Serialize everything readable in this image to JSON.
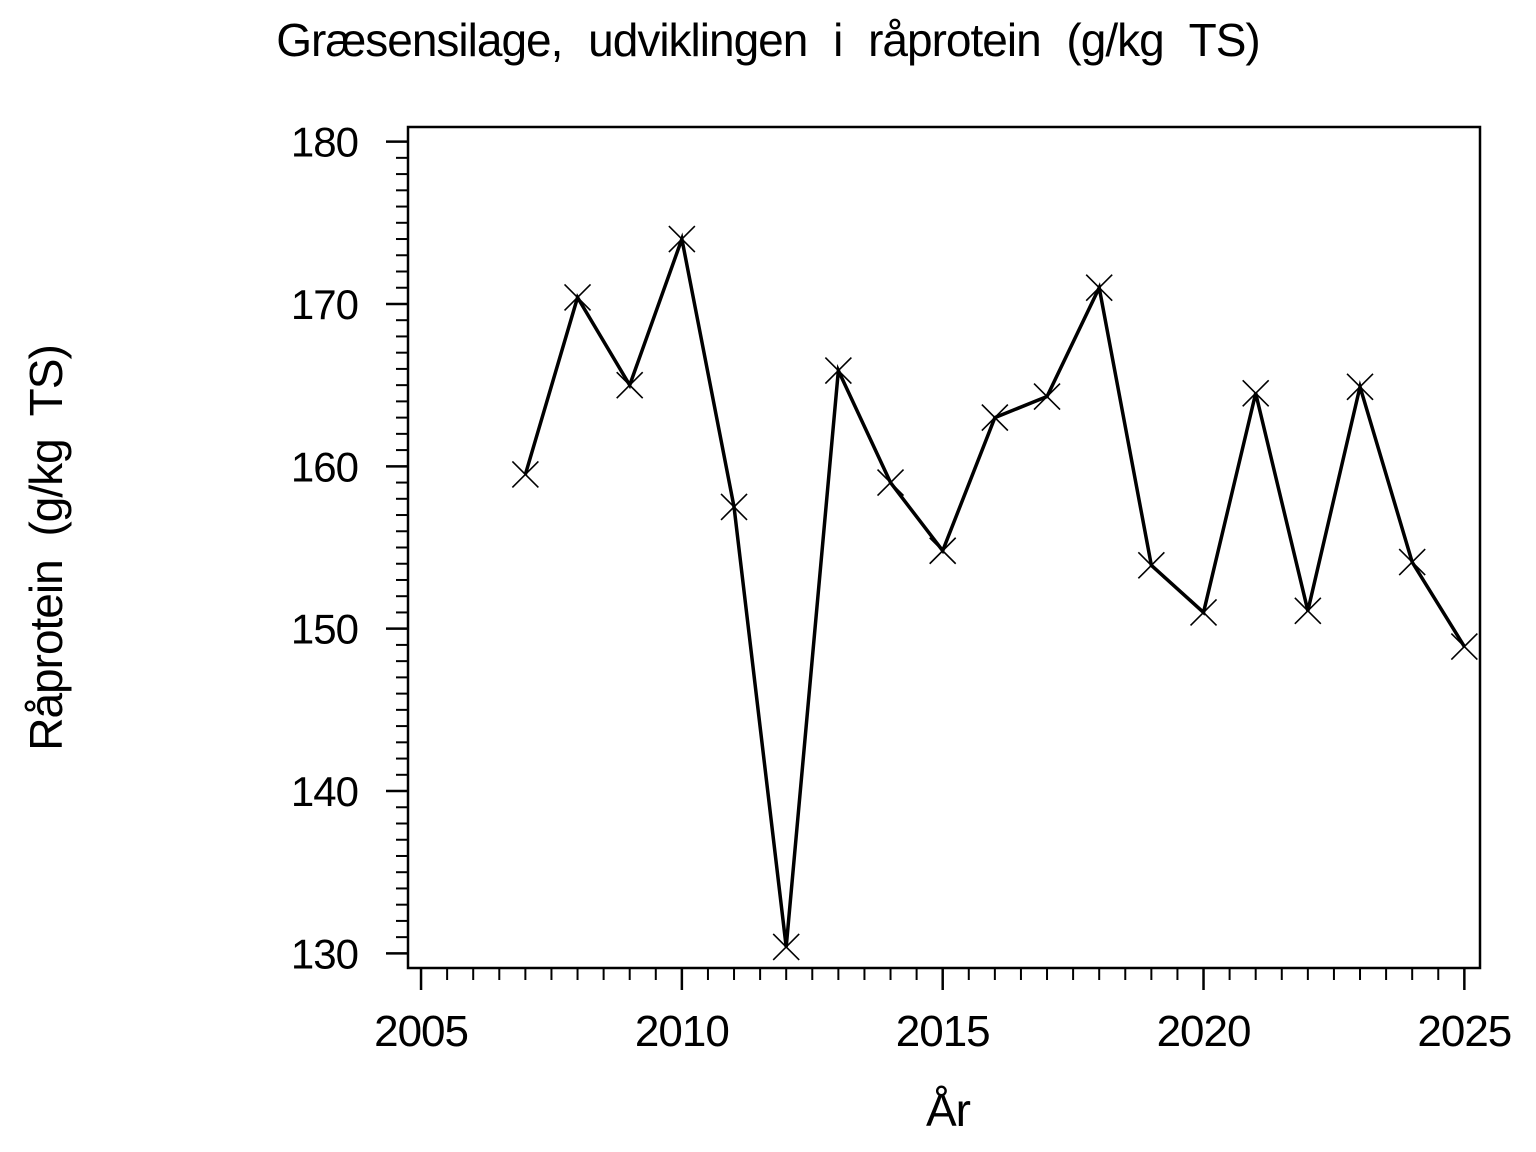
{
  "chart_data": {
    "type": "line",
    "title": "Græsensilage, udviklingen i råprotein (g/kg TS)",
    "xlabel": "År",
    "ylabel": "Råprotein (g/kg TS)",
    "x": [
      2007,
      2008,
      2009,
      2010,
      2011,
      2012,
      2013,
      2014,
      2015,
      2016,
      2017,
      2018,
      2019,
      2020,
      2021,
      2022,
      2023,
      2024,
      2025
    ],
    "values": [
      159.5,
      170.4,
      165.0,
      174.0,
      157.5,
      130.4,
      165.9,
      159.0,
      154.8,
      163.0,
      164.3,
      171.0,
      153.9,
      151.0,
      164.5,
      151.1,
      164.9,
      154.1,
      148.9
    ],
    "series_name": "Råprotein",
    "xlim": [
      2004.75,
      2025.3
    ],
    "ylim": [
      129.1,
      180.9
    ],
    "x_major_ticks": [
      2005,
      2010,
      2015,
      2020,
      2025
    ],
    "x_minor_step": 0.5,
    "y_major_ticks": [
      130,
      140,
      150,
      160,
      170,
      180
    ],
    "y_minor_step": 1,
    "grid": false,
    "legend": "none",
    "marker": "x",
    "line_color": "#000000",
    "frame_color": "#000000",
    "background_color": "#ffffff"
  }
}
